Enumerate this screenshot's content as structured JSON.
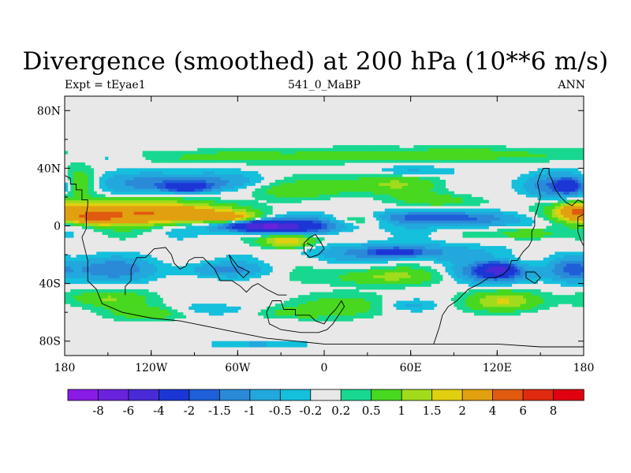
{
  "chart_data": {
    "type": "heatmap",
    "title": "Divergence (smoothed) at 200 hPa (10**6 m/s)",
    "left_label": "Expt = tEyae1",
    "center_label": "541_0_MaBP",
    "right_label": "ANN",
    "x_range": [
      -180,
      180
    ],
    "y_range": [
      -90,
      90
    ],
    "x_ticks": [
      {
        "value": -180,
        "label": "180"
      },
      {
        "value": -120,
        "label": "120W"
      },
      {
        "value": -60,
        "label": "60W"
      },
      {
        "value": 0,
        "label": "0"
      },
      {
        "value": 60,
        "label": "60E"
      },
      {
        "value": 120,
        "label": "120E"
      },
      {
        "value": 180,
        "label": "180"
      }
    ],
    "y_ticks": [
      {
        "value": 80,
        "label": "80N"
      },
      {
        "value": 40,
        "label": "40N"
      },
      {
        "value": 0,
        "label": "0"
      },
      {
        "value": -40,
        "label": "40S"
      },
      {
        "value": -80,
        "label": "80S"
      }
    ],
    "levels": [
      "-8",
      "-6",
      "-4",
      "-2",
      "-1.5",
      "-1",
      "-0.5",
      "-0.2",
      "0.2",
      "0.5",
      "1",
      "1.5",
      "2",
      "4",
      "6",
      "8"
    ],
    "colors": [
      "#8a1be6",
      "#6a23dc",
      "#4a2ad6",
      "#1c36d6",
      "#1f5fd8",
      "#2a8ad8",
      "#22a8dc",
      "#14c0dc",
      "#e8e8e8",
      "#18d890",
      "#48d820",
      "#a0dc1c",
      "#e0d010",
      "#e0a010",
      "#e05a10",
      "#e02a10",
      "#e00010"
    ],
    "background_color": "#e8e8e8",
    "coastline_color": "#000000",
    "blobs": [
      {
        "lon": -140,
        "lat": 10,
        "rlon": 60,
        "rlat": 8,
        "v": 2.3
      },
      {
        "lon": -105,
        "lat": 8,
        "rlon": 45,
        "rlat": 6,
        "v": 2.3
      },
      {
        "lon": -160,
        "lat": 6,
        "rlon": 15,
        "rlat": 4,
        "v": 3.2
      },
      {
        "lon": -65,
        "lat": 6,
        "rlon": 18,
        "rlat": 3,
        "v": 1.7
      },
      {
        "lon": -25,
        "lat": -10,
        "rlon": 18,
        "rlat": 5,
        "v": 2.2
      },
      {
        "lon": 175,
        "lat": 10,
        "rlon": 12,
        "rlat": 5,
        "v": 2.8
      },
      {
        "lon": 140,
        "lat": -5,
        "rlon": 20,
        "rlat": 4,
        "v": 1.2
      },
      {
        "lon": 25,
        "lat": 5,
        "rlon": 22,
        "rlat": 4,
        "v": 1.2
      },
      {
        "lon": -170,
        "lat": 30,
        "rlon": 12,
        "rlat": 10,
        "v": 1.1
      },
      {
        "lon": -25,
        "lat": 25,
        "rlon": 60,
        "rlat": 6,
        "v": 0.7
      },
      {
        "lon": 40,
        "lat": 30,
        "rlon": 40,
        "rlat": 7,
        "v": 0.9
      },
      {
        "lon": 80,
        "lat": 18,
        "rlon": 30,
        "rlat": 5,
        "v": 0.8
      },
      {
        "lon": -60,
        "lat": 48,
        "rlon": 120,
        "rlat": 5,
        "v": 0.65
      },
      {
        "lon": 90,
        "lat": 50,
        "rlon": 90,
        "rlat": 5,
        "v": 0.7
      },
      {
        "lon": -150,
        "lat": -50,
        "rlon": 30,
        "rlat": 6,
        "v": 1.0
      },
      {
        "lon": -120,
        "lat": -60,
        "rlon": 30,
        "rlat": 5,
        "v": 0.9
      },
      {
        "lon": 10,
        "lat": -55,
        "rlon": 35,
        "rlat": 8,
        "v": 0.8
      },
      {
        "lon": 125,
        "lat": -52,
        "rlon": 25,
        "rlat": 7,
        "v": 1.6
      },
      {
        "lon": 40,
        "lat": -35,
        "rlon": 40,
        "rlat": 6,
        "v": 1.1
      },
      {
        "lon": -20,
        "lat": -60,
        "rlon": 25,
        "rlat": 4,
        "v": 0.7
      },
      {
        "lon": -45,
        "lat": -82,
        "rlon": 35,
        "rlat": 2.5,
        "v": -0.6
      },
      {
        "lon": -100,
        "lat": 30,
        "rlon": 45,
        "rlat": 7,
        "v": -1.7
      },
      {
        "lon": -95,
        "lat": 27,
        "rlon": 15,
        "rlat": 3,
        "v": -2.6
      },
      {
        "lon": -30,
        "lat": 0,
        "rlon": 45,
        "rlat": 5,
        "v": -2.7
      },
      {
        "lon": -40,
        "lat": 0,
        "rlon": 22,
        "rlat": 3,
        "v": -4.2
      },
      {
        "lon": 50,
        "lat": 6,
        "rlon": 50,
        "rlat": 4,
        "v": -1.3
      },
      {
        "lon": 100,
        "lat": 5,
        "rlon": 30,
        "rlat": 6,
        "v": -1.5
      },
      {
        "lon": 160,
        "lat": 28,
        "rlon": 25,
        "rlat": 9,
        "v": -1.6
      },
      {
        "lon": 170,
        "lat": 28,
        "rlon": 8,
        "rlat": 4,
        "v": -2.4
      },
      {
        "lon": 50,
        "lat": -18,
        "rlon": 60,
        "rlat": 6,
        "v": -1.3
      },
      {
        "lon": 50,
        "lat": -18,
        "rlon": 15,
        "rlat": 2.5,
        "v": -2.1
      },
      {
        "lon": 120,
        "lat": -32,
        "rlon": 25,
        "rlat": 7,
        "v": -2.3
      },
      {
        "lon": 120,
        "lat": -30,
        "rlon": 10,
        "rlat": 4,
        "v": -3.2
      },
      {
        "lon": -150,
        "lat": -30,
        "rlon": 35,
        "rlat": 8,
        "v": -1.3
      },
      {
        "lon": -70,
        "lat": -30,
        "rlon": 30,
        "rlat": 5,
        "v": -1.0
      },
      {
        "lon": 170,
        "lat": -30,
        "rlon": 15,
        "rlat": 8,
        "v": -1.2
      },
      {
        "lon": -150,
        "lat": 48,
        "rlon": 30,
        "rlat": 4,
        "v": -0.7
      },
      {
        "lon": 60,
        "lat": 38,
        "rlon": 25,
        "rlat": 4,
        "v": -0.8
      },
      {
        "lon": -80,
        "lat": -58,
        "rlon": 30,
        "rlat": 4,
        "v": -0.6
      },
      {
        "lon": 60,
        "lat": -55,
        "rlon": 20,
        "rlat": 4,
        "v": -0.6
      }
    ],
    "coastlines": [
      [
        [
          -180,
          35
        ],
        [
          -176,
          33
        ],
        [
          -176,
          29
        ],
        [
          -172,
          29
        ],
        [
          -172,
          25
        ],
        [
          -168,
          25
        ],
        [
          -168,
          18
        ],
        [
          -164,
          18
        ],
        [
          -164,
          14
        ],
        [
          -165,
          8
        ],
        [
          -165,
          -2
        ],
        [
          -168,
          -8
        ],
        [
          -166,
          -16
        ],
        [
          -164,
          -24
        ],
        [
          -164,
          -38
        ],
        [
          -158,
          -44
        ],
        [
          -154,
          -54
        ],
        [
          -140,
          -60
        ],
        [
          -120,
          -64
        ],
        [
          -100,
          -66
        ],
        [
          -80,
          -70
        ],
        [
          -60,
          -74
        ],
        [
          -40,
          -78
        ],
        [
          -20,
          -80
        ],
        [
          0,
          -82
        ],
        [
          30,
          -82
        ],
        [
          60,
          -82
        ],
        [
          90,
          -82
        ],
        [
          120,
          -82
        ],
        [
          150,
          -84
        ],
        [
          180,
          -84
        ]
      ],
      [
        [
          -120,
          -18
        ],
        [
          -118,
          -16
        ],
        [
          -110,
          -15
        ],
        [
          -106,
          -20
        ],
        [
          -104,
          -26
        ],
        [
          -100,
          -30
        ],
        [
          -96,
          -28
        ],
        [
          -94,
          -24
        ],
        [
          -90,
          -22
        ],
        [
          -84,
          -22
        ],
        [
          -80,
          -26
        ],
        [
          -76,
          -30
        ],
        [
          -74,
          -34
        ],
        [
          -72,
          -38
        ],
        [
          -64,
          -38
        ],
        [
          -58,
          -42
        ],
        [
          -54,
          -46
        ],
        [
          -50,
          -42
        ],
        [
          -46,
          -40
        ],
        [
          -40,
          -44
        ],
        [
          -32,
          -48
        ],
        [
          -26,
          -48
        ]
      ],
      [
        [
          -120,
          -18
        ],
        [
          -124,
          -22
        ],
        [
          -130,
          -22
        ],
        [
          -134,
          -30
        ],
        [
          -134,
          -38
        ],
        [
          -138,
          -42
        ],
        [
          -138,
          -48
        ]
      ],
      [
        [
          -66,
          -20
        ],
        [
          -64,
          -26
        ],
        [
          -60,
          -32
        ],
        [
          -56,
          -36
        ],
        [
          -52,
          -32
        ],
        [
          -60,
          -28
        ],
        [
          -66,
          -20
        ]
      ],
      [
        [
          -36,
          -52
        ],
        [
          -30,
          -52
        ],
        [
          -28,
          -58
        ],
        [
          -20,
          -58
        ],
        [
          -20,
          -62
        ],
        [
          -10,
          -62
        ],
        [
          -6,
          -66
        ],
        [
          0,
          -68
        ],
        [
          4,
          -62
        ],
        [
          8,
          -58
        ],
        [
          12,
          -52
        ],
        [
          14,
          -56
        ],
        [
          10,
          -62
        ],
        [
          6,
          -68
        ],
        [
          2,
          -72
        ],
        [
          -4,
          -74
        ],
        [
          -16,
          -74
        ],
        [
          -30,
          -72
        ],
        [
          -38,
          -68
        ],
        [
          -40,
          -60
        ],
        [
          -36,
          -52
        ]
      ],
      [
        [
          -10,
          -8
        ],
        [
          -6,
          -6
        ],
        [
          -2,
          -12
        ],
        [
          0,
          -16
        ],
        [
          -4,
          -20
        ],
        [
          -10,
          -22
        ],
        [
          -14,
          -18
        ],
        [
          -14,
          -12
        ],
        [
          -10,
          -8
        ]
      ],
      [
        [
          -12,
          -12
        ],
        [
          -8,
          -14
        ],
        [
          -10,
          -18
        ]
      ],
      [
        [
          180,
          16
        ],
        [
          176,
          18
        ],
        [
          172,
          14
        ],
        [
          168,
          16
        ],
        [
          164,
          20
        ],
        [
          160,
          26
        ],
        [
          158,
          32
        ],
        [
          156,
          36
        ],
        [
          156,
          40
        ],
        [
          152,
          40
        ],
        [
          150,
          36
        ],
        [
          148,
          30
        ],
        [
          150,
          20
        ],
        [
          148,
          12
        ],
        [
          146,
          6
        ],
        [
          146,
          0
        ],
        [
          144,
          -4
        ],
        [
          144,
          -10
        ],
        [
          142,
          -14
        ],
        [
          138,
          -18
        ],
        [
          134,
          -24
        ],
        [
          130,
          -24
        ],
        [
          128,
          -30
        ],
        [
          124,
          -34
        ],
        [
          118,
          -36
        ],
        [
          114,
          -36
        ],
        [
          108,
          -40
        ],
        [
          104,
          -42
        ],
        [
          100,
          -44
        ],
        [
          96,
          -48
        ],
        [
          92,
          -52
        ],
        [
          86,
          -56
        ],
        [
          82,
          -62
        ],
        [
          80,
          -70
        ],
        [
          78,
          -76
        ],
        [
          76,
          -82
        ]
      ],
      [
        [
          180,
          8
        ],
        [
          176,
          6
        ],
        [
          176,
          -4
        ],
        [
          178,
          -10
        ],
        [
          180,
          -14
        ]
      ],
      [
        [
          140,
          -32
        ],
        [
          146,
          -32
        ],
        [
          150,
          -36
        ],
        [
          146,
          -40
        ],
        [
          140,
          -36
        ],
        [
          140,
          -32
        ]
      ]
    ]
  }
}
